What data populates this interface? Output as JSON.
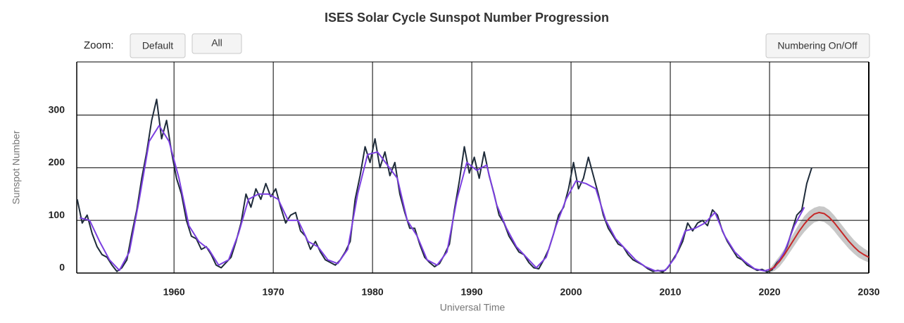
{
  "chart_data": {
    "type": "line",
    "title": "ISES Solar Cycle Sunspot Number Progression",
    "controls": {
      "zoom_label": "Zoom:",
      "buttons": [
        "Default",
        "All",
        "Numbering On/Off"
      ]
    },
    "x_label": "Universal Time",
    "y_label": "Sunspot Number",
    "xlim": [
      1950.2,
      2030
    ],
    "xticks": [
      1960,
      1970,
      1980,
      1990,
      2000,
      2010,
      2020,
      2030
    ],
    "ylim": [
      0,
      401
    ],
    "yticks": [
      0,
      100,
      200,
      300
    ],
    "grid": true,
    "series": [
      {
        "color": "#1e2b3a",
        "x": [
          1950.25,
          1950.75,
          1951.25,
          1951.75,
          1952.25,
          1952.75,
          1953.25,
          1953.75,
          1954.25,
          1954.75,
          1955.25,
          1955.75,
          1956.25,
          1956.75,
          1957.25,
          1957.75,
          1958.25,
          1958.75,
          1959.25,
          1959.75,
          1960.25,
          1960.75,
          1961.25,
          1961.75,
          1962.25,
          1962.75,
          1963.25,
          1963.75,
          1964.25,
          1964.75,
          1965.25,
          1965.75,
          1966.25,
          1966.75,
          1967.25,
          1967.75,
          1968.25,
          1968.75,
          1969.25,
          1969.75,
          1970.25,
          1970.75,
          1971.25,
          1971.75,
          1972.25,
          1972.75,
          1973.25,
          1973.75,
          1974.25,
          1974.75,
          1975.25,
          1975.75,
          1976.25,
          1976.75,
          1977.25,
          1977.75,
          1978.25,
          1978.75,
          1979.25,
          1979.75,
          1980.25,
          1980.75,
          1981.25,
          1981.75,
          1982.25,
          1982.75,
          1983.25,
          1983.75,
          1984.25,
          1984.75,
          1985.25,
          1985.75,
          1986.25,
          1986.75,
          1987.25,
          1987.75,
          1988.25,
          1988.75,
          1989.25,
          1989.75,
          1990.25,
          1990.75,
          1991.25,
          1991.75,
          1992.25,
          1992.75,
          1993.25,
          1993.75,
          1994.25,
          1994.75,
          1995.25,
          1995.75,
          1996.25,
          1996.75,
          1997.25,
          1997.75,
          1998.25,
          1998.75,
          1999.25,
          1999.75,
          2000.25,
          2000.75,
          2001.25,
          2001.75,
          2002.25,
          2002.75,
          2003.25,
          2003.75,
          2004.25,
          2004.75,
          2005.25,
          2005.75,
          2006.25,
          2006.75,
          2007.25,
          2007.75,
          2008.25,
          2008.75,
          2009.25,
          2009.75,
          2010.25,
          2010.75,
          2011.25,
          2011.75,
          2012.25,
          2012.75,
          2013.25,
          2013.75,
          2014.25,
          2014.75,
          2015.25,
          2015.75,
          2016.25,
          2016.75,
          2017.25,
          2017.75,
          2018.25,
          2018.75,
          2019.25,
          2019.75,
          2020.25,
          2020.75,
          2021.25,
          2021.75,
          2022.25,
          2022.75,
          2023.25,
          2023.75,
          2024.25
        ],
        "values": [
          140,
          95,
          110,
          75,
          50,
          35,
          30,
          15,
          3,
          10,
          25,
          75,
          120,
          180,
          230,
          290,
          330,
          255,
          290,
          230,
          180,
          150,
          100,
          70,
          65,
          45,
          50,
          35,
          15,
          10,
          20,
          30,
          60,
          95,
          150,
          125,
          160,
          140,
          170,
          145,
          160,
          125,
          95,
          110,
          115,
          80,
          70,
          45,
          60,
          40,
          25,
          20,
          15,
          25,
          40,
          60,
          140,
          185,
          240,
          210,
          255,
          200,
          230,
          185,
          210,
          150,
          115,
          85,
          85,
          55,
          30,
          20,
          12,
          18,
          35,
          55,
          120,
          175,
          240,
          190,
          220,
          180,
          230,
          185,
          150,
          110,
          95,
          70,
          55,
          40,
          35,
          20,
          10,
          8,
          25,
          45,
          75,
          110,
          125,
          160,
          210,
          160,
          180,
          220,
          185,
          150,
          110,
          85,
          70,
          55,
          50,
          35,
          25,
          20,
          15,
          8,
          3,
          5,
          2,
          10,
          25,
          40,
          60,
          95,
          80,
          95,
          100,
          90,
          120,
          110,
          80,
          60,
          45,
          30,
          25,
          15,
          10,
          5,
          7,
          2,
          6,
          20,
          30,
          50,
          80,
          110,
          120,
          170,
          200
        ]
      },
      {
        "color": "#7b3fe0",
        "x": [
          1950.5,
          1951.5,
          1952.5,
          1953.5,
          1954.5,
          1955.5,
          1956.5,
          1957.5,
          1958.5,
          1959.5,
          1960.5,
          1961.5,
          1962.5,
          1963.5,
          1964.5,
          1965.5,
          1966.5,
          1967.5,
          1968.5,
          1969.5,
          1970.5,
          1971.5,
          1972.5,
          1973.5,
          1974.5,
          1975.5,
          1976.5,
          1977.5,
          1978.5,
          1979.5,
          1980.5,
          1981.5,
          1982.5,
          1983.5,
          1984.5,
          1985.5,
          1986.5,
          1987.5,
          1988.5,
          1989.5,
          1990.5,
          1991.5,
          1992.5,
          1993.5,
          1994.5,
          1995.5,
          1996.5,
          1997.5,
          1998.5,
          1999.5,
          2000.5,
          2001.5,
          2002.5,
          2003.5,
          2004.5,
          2005.5,
          2006.5,
          2007.5,
          2008.5,
          2009.5,
          2010.5,
          2011.5,
          2012.5,
          2013.5,
          2014.5,
          2015.5,
          2016.5,
          2017.5,
          2018.5,
          2019.5,
          2020.5,
          2021.5,
          2022.5,
          2023.5
        ],
        "values": [
          105,
          100,
          60,
          25,
          5,
          40,
          140,
          250,
          280,
          250,
          180,
          90,
          60,
          45,
          15,
          25,
          75,
          140,
          150,
          150,
          140,
          100,
          100,
          60,
          50,
          25,
          18,
          45,
          150,
          225,
          230,
          205,
          180,
          100,
          70,
          25,
          15,
          40,
          140,
          210,
          195,
          205,
          130,
          85,
          50,
          30,
          10,
          30,
          90,
          140,
          175,
          170,
          160,
          100,
          65,
          45,
          25,
          12,
          4,
          5,
          30,
          80,
          85,
          95,
          115,
          70,
          40,
          22,
          8,
          4,
          10,
          40,
          90,
          125
        ]
      },
      {
        "color": "#c62828",
        "x": [
          2020,
          2020.5,
          2021,
          2021.5,
          2022,
          2022.5,
          2023,
          2023.5,
          2024,
          2024.5,
          2025,
          2025.5,
          2026,
          2026.5,
          2027,
          2027.5,
          2028,
          2028.5,
          2029,
          2029.5,
          2030
        ],
        "values": [
          5,
          12,
          22,
          35,
          50,
          65,
          80,
          93,
          104,
          112,
          115,
          113,
          106,
          96,
          84,
          72,
          60,
          50,
          41,
          35,
          30
        ]
      }
    ],
    "band": {
      "color": "#c8c8c8",
      "x": [
        2020,
        2020.5,
        2021,
        2021.5,
        2022,
        2022.5,
        2023,
        2023.5,
        2024,
        2024.5,
        2025,
        2025.5,
        2026,
        2026.5,
        2027,
        2027.5,
        2028,
        2028.5,
        2029,
        2029.5,
        2030
      ],
      "low": [
        0,
        4,
        12,
        24,
        38,
        52,
        66,
        78,
        88,
        96,
        99,
        97,
        90,
        80,
        68,
        57,
        46,
        37,
        29,
        24,
        20
      ],
      "high": [
        8,
        20,
        32,
        46,
        62,
        78,
        94,
        108,
        118,
        124,
        127,
        126,
        120,
        110,
        98,
        86,
        74,
        63,
        54,
        47,
        41
      ]
    }
  }
}
